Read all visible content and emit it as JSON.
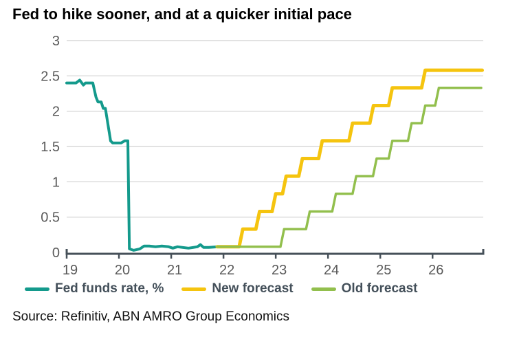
{
  "source_note": "Source: Refinitiv, ABN AMRO Group Economics",
  "colors": {
    "fed_funds": "#149a8c",
    "new_forecast": "#f5c40f",
    "old_forecast": "#92bf4d",
    "gridline": "#d9d9d9",
    "axis": "#465059",
    "tick_label": "#595959",
    "legend_text": "#44505a",
    "title_text": "#000000"
  },
  "chart_data": {
    "type": "line",
    "title": "Fed to hike sooner, and at a quicker initial pace",
    "xlabel": "",
    "ylabel": "",
    "x_ticks": [
      "19",
      "20",
      "21",
      "22",
      "23",
      "24",
      "25",
      "26"
    ],
    "y_ticks": [
      "0",
      "0.5",
      "1",
      "1.5",
      "2",
      "2.5",
      "3"
    ],
    "xlim": [
      19,
      26.97
    ],
    "ylim": [
      0,
      3
    ],
    "grid": "horizontal",
    "legend_position": "bottom",
    "series": [
      {
        "name": "Fed funds rate, %",
        "color": "#149a8c",
        "points": [
          [
            19.0,
            2.4
          ],
          [
            19.18,
            2.4
          ],
          [
            19.25,
            2.44
          ],
          [
            19.32,
            2.37
          ],
          [
            19.36,
            2.4
          ],
          [
            19.5,
            2.4
          ],
          [
            19.56,
            2.2
          ],
          [
            19.6,
            2.13
          ],
          [
            19.66,
            2.13
          ],
          [
            19.7,
            2.04
          ],
          [
            19.74,
            2.04
          ],
          [
            19.84,
            1.58
          ],
          [
            19.88,
            1.55
          ],
          [
            20.04,
            1.55
          ],
          [
            20.11,
            1.58
          ],
          [
            20.17,
            1.58
          ],
          [
            20.2,
            0.05
          ],
          [
            20.28,
            0.03
          ],
          [
            20.4,
            0.05
          ],
          [
            20.48,
            0.09
          ],
          [
            20.58,
            0.09
          ],
          [
            20.7,
            0.08
          ],
          [
            20.82,
            0.09
          ],
          [
            20.95,
            0.08
          ],
          [
            21.03,
            0.06
          ],
          [
            21.12,
            0.08
          ],
          [
            21.22,
            0.07
          ],
          [
            21.33,
            0.06
          ],
          [
            21.42,
            0.07
          ],
          [
            21.5,
            0.08
          ],
          [
            21.56,
            0.11
          ],
          [
            21.62,
            0.07
          ],
          [
            21.72,
            0.07
          ],
          [
            21.9,
            0.08
          ]
        ]
      },
      {
        "name": "New forecast",
        "color": "#f5c40f",
        "points": [
          [
            21.88,
            0.08
          ],
          [
            22.3,
            0.08
          ],
          [
            22.37,
            0.33
          ],
          [
            22.62,
            0.33
          ],
          [
            22.69,
            0.58
          ],
          [
            22.93,
            0.58
          ],
          [
            23.0,
            0.83
          ],
          [
            23.13,
            0.83
          ],
          [
            23.2,
            1.08
          ],
          [
            23.44,
            1.08
          ],
          [
            23.51,
            1.33
          ],
          [
            23.82,
            1.33
          ],
          [
            23.89,
            1.58
          ],
          [
            24.4,
            1.58
          ],
          [
            24.47,
            1.83
          ],
          [
            24.8,
            1.83
          ],
          [
            24.87,
            2.08
          ],
          [
            25.16,
            2.08
          ],
          [
            25.23,
            2.33
          ],
          [
            25.79,
            2.33
          ],
          [
            25.86,
            2.58
          ],
          [
            26.95,
            2.58
          ]
        ]
      },
      {
        "name": "Old forecast",
        "color": "#92bf4d",
        "points": [
          [
            21.88,
            0.08
          ],
          [
            23.09,
            0.08
          ],
          [
            23.16,
            0.33
          ],
          [
            23.58,
            0.33
          ],
          [
            23.65,
            0.58
          ],
          [
            24.08,
            0.58
          ],
          [
            24.15,
            0.83
          ],
          [
            24.47,
            0.83
          ],
          [
            24.54,
            1.08
          ],
          [
            24.86,
            1.08
          ],
          [
            24.93,
            1.33
          ],
          [
            25.16,
            1.33
          ],
          [
            25.23,
            1.58
          ],
          [
            25.53,
            1.58
          ],
          [
            25.6,
            1.83
          ],
          [
            25.79,
            1.83
          ],
          [
            25.86,
            2.08
          ],
          [
            26.05,
            2.08
          ],
          [
            26.12,
            2.33
          ],
          [
            26.93,
            2.33
          ]
        ]
      }
    ]
  }
}
